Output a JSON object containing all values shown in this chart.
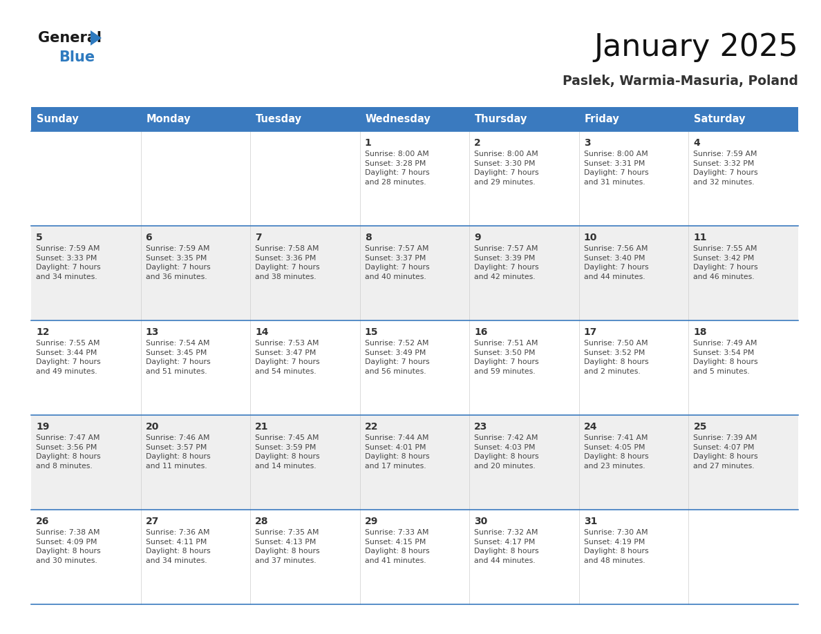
{
  "title": "January 2025",
  "subtitle": "Paslek, Warmia-Masuria, Poland",
  "days_of_week": [
    "Sunday",
    "Monday",
    "Tuesday",
    "Wednesday",
    "Thursday",
    "Friday",
    "Saturday"
  ],
  "header_bg": "#3a7abf",
  "header_text": "#ffffff",
  "row_bg_even": "#efefef",
  "row_bg_odd": "#ffffff",
  "separator_color": "#3a7abf",
  "day_number_color": "#333333",
  "text_color": "#444444",
  "calendar": [
    [
      {
        "day": null,
        "info": null
      },
      {
        "day": null,
        "info": null
      },
      {
        "day": null,
        "info": null
      },
      {
        "day": 1,
        "info": "Sunrise: 8:00 AM\nSunset: 3:28 PM\nDaylight: 7 hours\nand 28 minutes."
      },
      {
        "day": 2,
        "info": "Sunrise: 8:00 AM\nSunset: 3:30 PM\nDaylight: 7 hours\nand 29 minutes."
      },
      {
        "day": 3,
        "info": "Sunrise: 8:00 AM\nSunset: 3:31 PM\nDaylight: 7 hours\nand 31 minutes."
      },
      {
        "day": 4,
        "info": "Sunrise: 7:59 AM\nSunset: 3:32 PM\nDaylight: 7 hours\nand 32 minutes."
      }
    ],
    [
      {
        "day": 5,
        "info": "Sunrise: 7:59 AM\nSunset: 3:33 PM\nDaylight: 7 hours\nand 34 minutes."
      },
      {
        "day": 6,
        "info": "Sunrise: 7:59 AM\nSunset: 3:35 PM\nDaylight: 7 hours\nand 36 minutes."
      },
      {
        "day": 7,
        "info": "Sunrise: 7:58 AM\nSunset: 3:36 PM\nDaylight: 7 hours\nand 38 minutes."
      },
      {
        "day": 8,
        "info": "Sunrise: 7:57 AM\nSunset: 3:37 PM\nDaylight: 7 hours\nand 40 minutes."
      },
      {
        "day": 9,
        "info": "Sunrise: 7:57 AM\nSunset: 3:39 PM\nDaylight: 7 hours\nand 42 minutes."
      },
      {
        "day": 10,
        "info": "Sunrise: 7:56 AM\nSunset: 3:40 PM\nDaylight: 7 hours\nand 44 minutes."
      },
      {
        "day": 11,
        "info": "Sunrise: 7:55 AM\nSunset: 3:42 PM\nDaylight: 7 hours\nand 46 minutes."
      }
    ],
    [
      {
        "day": 12,
        "info": "Sunrise: 7:55 AM\nSunset: 3:44 PM\nDaylight: 7 hours\nand 49 minutes."
      },
      {
        "day": 13,
        "info": "Sunrise: 7:54 AM\nSunset: 3:45 PM\nDaylight: 7 hours\nand 51 minutes."
      },
      {
        "day": 14,
        "info": "Sunrise: 7:53 AM\nSunset: 3:47 PM\nDaylight: 7 hours\nand 54 minutes."
      },
      {
        "day": 15,
        "info": "Sunrise: 7:52 AM\nSunset: 3:49 PM\nDaylight: 7 hours\nand 56 minutes."
      },
      {
        "day": 16,
        "info": "Sunrise: 7:51 AM\nSunset: 3:50 PM\nDaylight: 7 hours\nand 59 minutes."
      },
      {
        "day": 17,
        "info": "Sunrise: 7:50 AM\nSunset: 3:52 PM\nDaylight: 8 hours\nand 2 minutes."
      },
      {
        "day": 18,
        "info": "Sunrise: 7:49 AM\nSunset: 3:54 PM\nDaylight: 8 hours\nand 5 minutes."
      }
    ],
    [
      {
        "day": 19,
        "info": "Sunrise: 7:47 AM\nSunset: 3:56 PM\nDaylight: 8 hours\nand 8 minutes."
      },
      {
        "day": 20,
        "info": "Sunrise: 7:46 AM\nSunset: 3:57 PM\nDaylight: 8 hours\nand 11 minutes."
      },
      {
        "day": 21,
        "info": "Sunrise: 7:45 AM\nSunset: 3:59 PM\nDaylight: 8 hours\nand 14 minutes."
      },
      {
        "day": 22,
        "info": "Sunrise: 7:44 AM\nSunset: 4:01 PM\nDaylight: 8 hours\nand 17 minutes."
      },
      {
        "day": 23,
        "info": "Sunrise: 7:42 AM\nSunset: 4:03 PM\nDaylight: 8 hours\nand 20 minutes."
      },
      {
        "day": 24,
        "info": "Sunrise: 7:41 AM\nSunset: 4:05 PM\nDaylight: 8 hours\nand 23 minutes."
      },
      {
        "day": 25,
        "info": "Sunrise: 7:39 AM\nSunset: 4:07 PM\nDaylight: 8 hours\nand 27 minutes."
      }
    ],
    [
      {
        "day": 26,
        "info": "Sunrise: 7:38 AM\nSunset: 4:09 PM\nDaylight: 8 hours\nand 30 minutes."
      },
      {
        "day": 27,
        "info": "Sunrise: 7:36 AM\nSunset: 4:11 PM\nDaylight: 8 hours\nand 34 minutes."
      },
      {
        "day": 28,
        "info": "Sunrise: 7:35 AM\nSunset: 4:13 PM\nDaylight: 8 hours\nand 37 minutes."
      },
      {
        "day": 29,
        "info": "Sunrise: 7:33 AM\nSunset: 4:15 PM\nDaylight: 8 hours\nand 41 minutes."
      },
      {
        "day": 30,
        "info": "Sunrise: 7:32 AM\nSunset: 4:17 PM\nDaylight: 8 hours\nand 44 minutes."
      },
      {
        "day": 31,
        "info": "Sunrise: 7:30 AM\nSunset: 4:19 PM\nDaylight: 8 hours\nand 48 minutes."
      },
      {
        "day": null,
        "info": null
      }
    ]
  ],
  "fig_width": 11.88,
  "fig_height": 9.18,
  "logo_color_general": "#1a1a1a",
  "logo_color_blue": "#2e7abf",
  "logo_triangle_color": "#2e7abf"
}
